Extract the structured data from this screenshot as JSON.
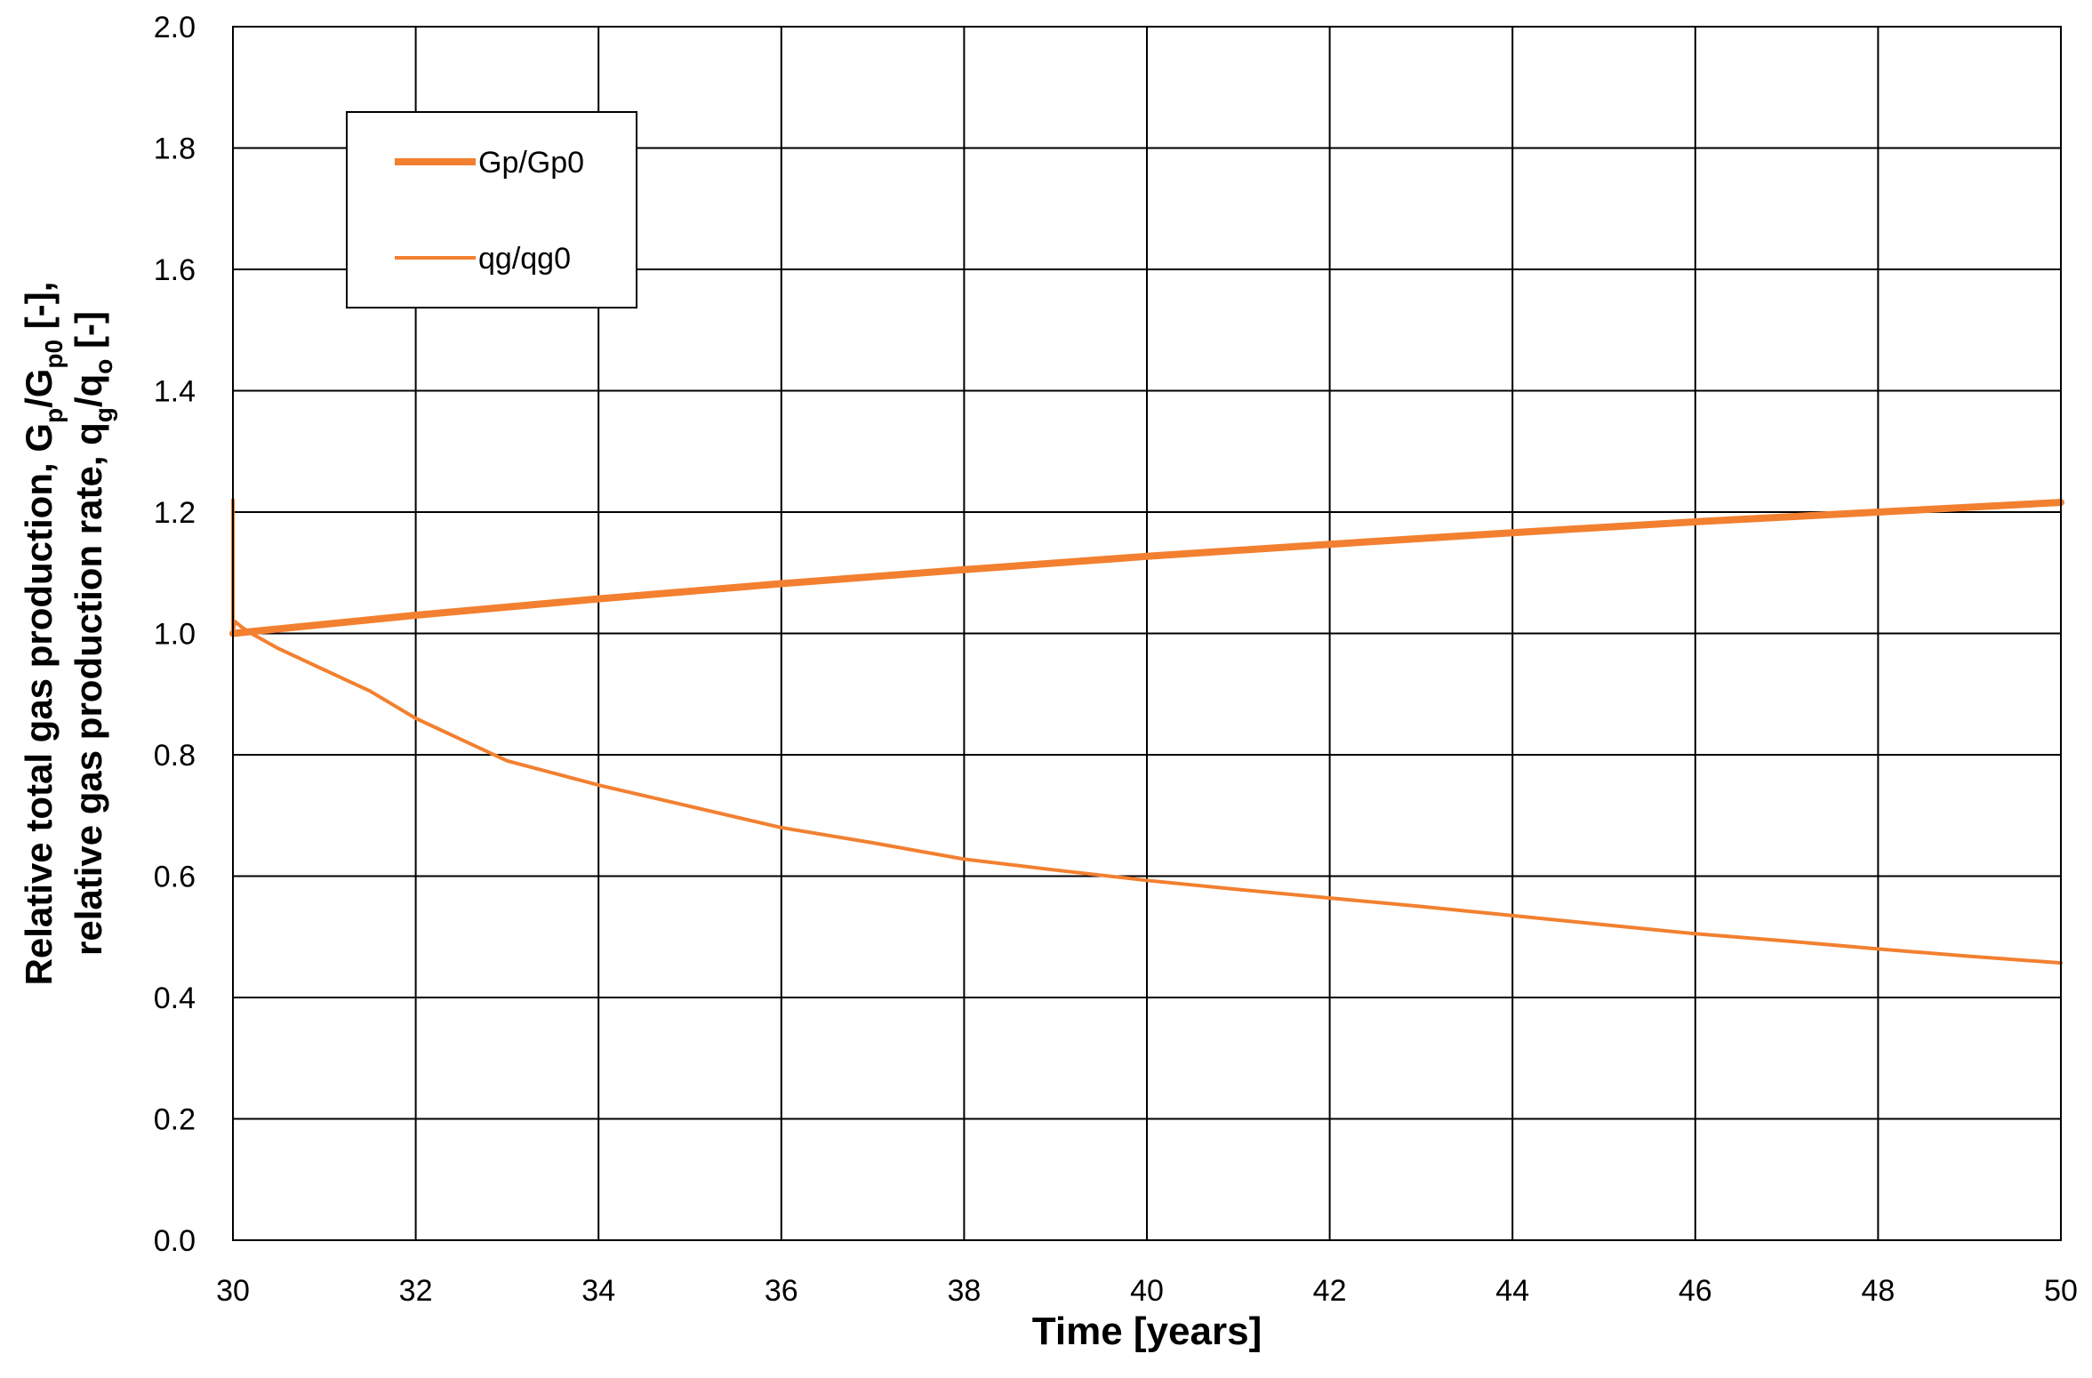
{
  "chart_data": {
    "type": "line",
    "xlabel": "Time  [years]",
    "ylabel": {
      "line1": "Relative total gas production, G",
      "line1_sub1": "p",
      "line1_mid": "/G",
      "line1_sub2": "p0",
      "line1_end": " [-],",
      "line2": "relative gas production rate, q",
      "line2_sub1": "g",
      "line2_mid": "/q",
      "line2_sub2": "o",
      "line2_end": " [-]"
    },
    "xlim": [
      30,
      50
    ],
    "ylim": [
      0.0,
      2.0
    ],
    "xticks": [
      "30",
      "32",
      "34",
      "36",
      "38",
      "40",
      "42",
      "44",
      "46",
      "48",
      "50"
    ],
    "yticks": [
      "0.0",
      "0.2",
      "0.4",
      "0.6",
      "0.8",
      "1.0",
      "1.2",
      "1.4",
      "1.6",
      "1.8",
      "2.0"
    ],
    "grid": true,
    "legend_position": "top-left",
    "series": [
      {
        "name": "Gp/Gp0",
        "color": "#f28030",
        "style": "thick",
        "x": [
          30,
          32,
          34,
          36,
          38,
          40,
          42,
          44,
          46,
          48,
          50
        ],
        "y": [
          1.0,
          1.03,
          1.057,
          1.082,
          1.105,
          1.127,
          1.147,
          1.166,
          1.184,
          1.2,
          1.216
        ]
      },
      {
        "name": "qg/qg0",
        "color": "#f28030",
        "style": "thin",
        "x": [
          30,
          30.0,
          30.02,
          30.1,
          30.2,
          30.5,
          31,
          31.5,
          32,
          32.5,
          33,
          34,
          35,
          36,
          37,
          38,
          39,
          40,
          41,
          42,
          43,
          44,
          45,
          46,
          47,
          48,
          49,
          50
        ],
        "y": [
          1.22,
          1.0,
          1.02,
          1.01,
          1.0,
          0.975,
          0.94,
          0.905,
          0.86,
          0.825,
          0.79,
          0.75,
          0.715,
          0.68,
          0.655,
          0.628,
          0.61,
          0.593,
          0.578,
          0.564,
          0.55,
          0.535,
          0.52,
          0.505,
          0.493,
          0.48,
          0.468,
          0.457
        ]
      }
    ]
  }
}
